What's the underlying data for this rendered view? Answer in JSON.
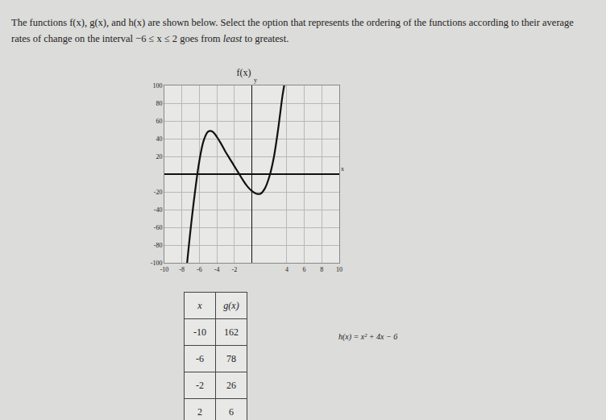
{
  "question": {
    "parts": [
      {
        "text": "The functions f(x), g(x), and h(x) are shown below. Select the option that represents the ordering of the functions according to their average rates of change on the interval −6 ≤ x ≤ 2 goes from ",
        "italic": false
      },
      {
        "text": "least",
        "italic": true
      },
      {
        "text": " to greatest.",
        "italic": false
      }
    ]
  },
  "chart_data": {
    "type": "line",
    "title": "f(x)",
    "x_label": "x",
    "y_label": "y",
    "x": [
      -7.4,
      -7,
      -6.5,
      -6,
      -5.5,
      -5,
      -4.5,
      -4,
      -3.5,
      -3,
      -2.5,
      -2,
      -1.5,
      -1,
      -0.5,
      0,
      0.5,
      1,
      1.5,
      2,
      2.5,
      3,
      3.5,
      3.7
    ],
    "values": [
      -100,
      -62,
      -20,
      15,
      38,
      48,
      48,
      42,
      34,
      25,
      17,
      9,
      1,
      -7,
      -14,
      -19,
      -22,
      -22,
      -16,
      -3,
      18,
      50,
      88,
      100
    ],
    "color": "#111111",
    "xlim": [
      -10,
      10
    ],
    "ylim": [
      -100,
      100
    ],
    "xticks": [
      -10,
      -8,
      -6,
      -4,
      -2,
      4,
      6,
      8,
      10
    ],
    "yticks": [
      -100,
      -80,
      -60,
      -40,
      -20,
      20,
      40,
      60,
      80,
      100
    ],
    "grid": true
  },
  "table": {
    "header": [
      "x",
      "g(x)"
    ],
    "rows": [
      [
        -10,
        162
      ],
      [
        -6,
        78
      ],
      [
        -2,
        26
      ],
      [
        2,
        6
      ]
    ]
  },
  "formula": "h(x) = x² + 4x − 6"
}
